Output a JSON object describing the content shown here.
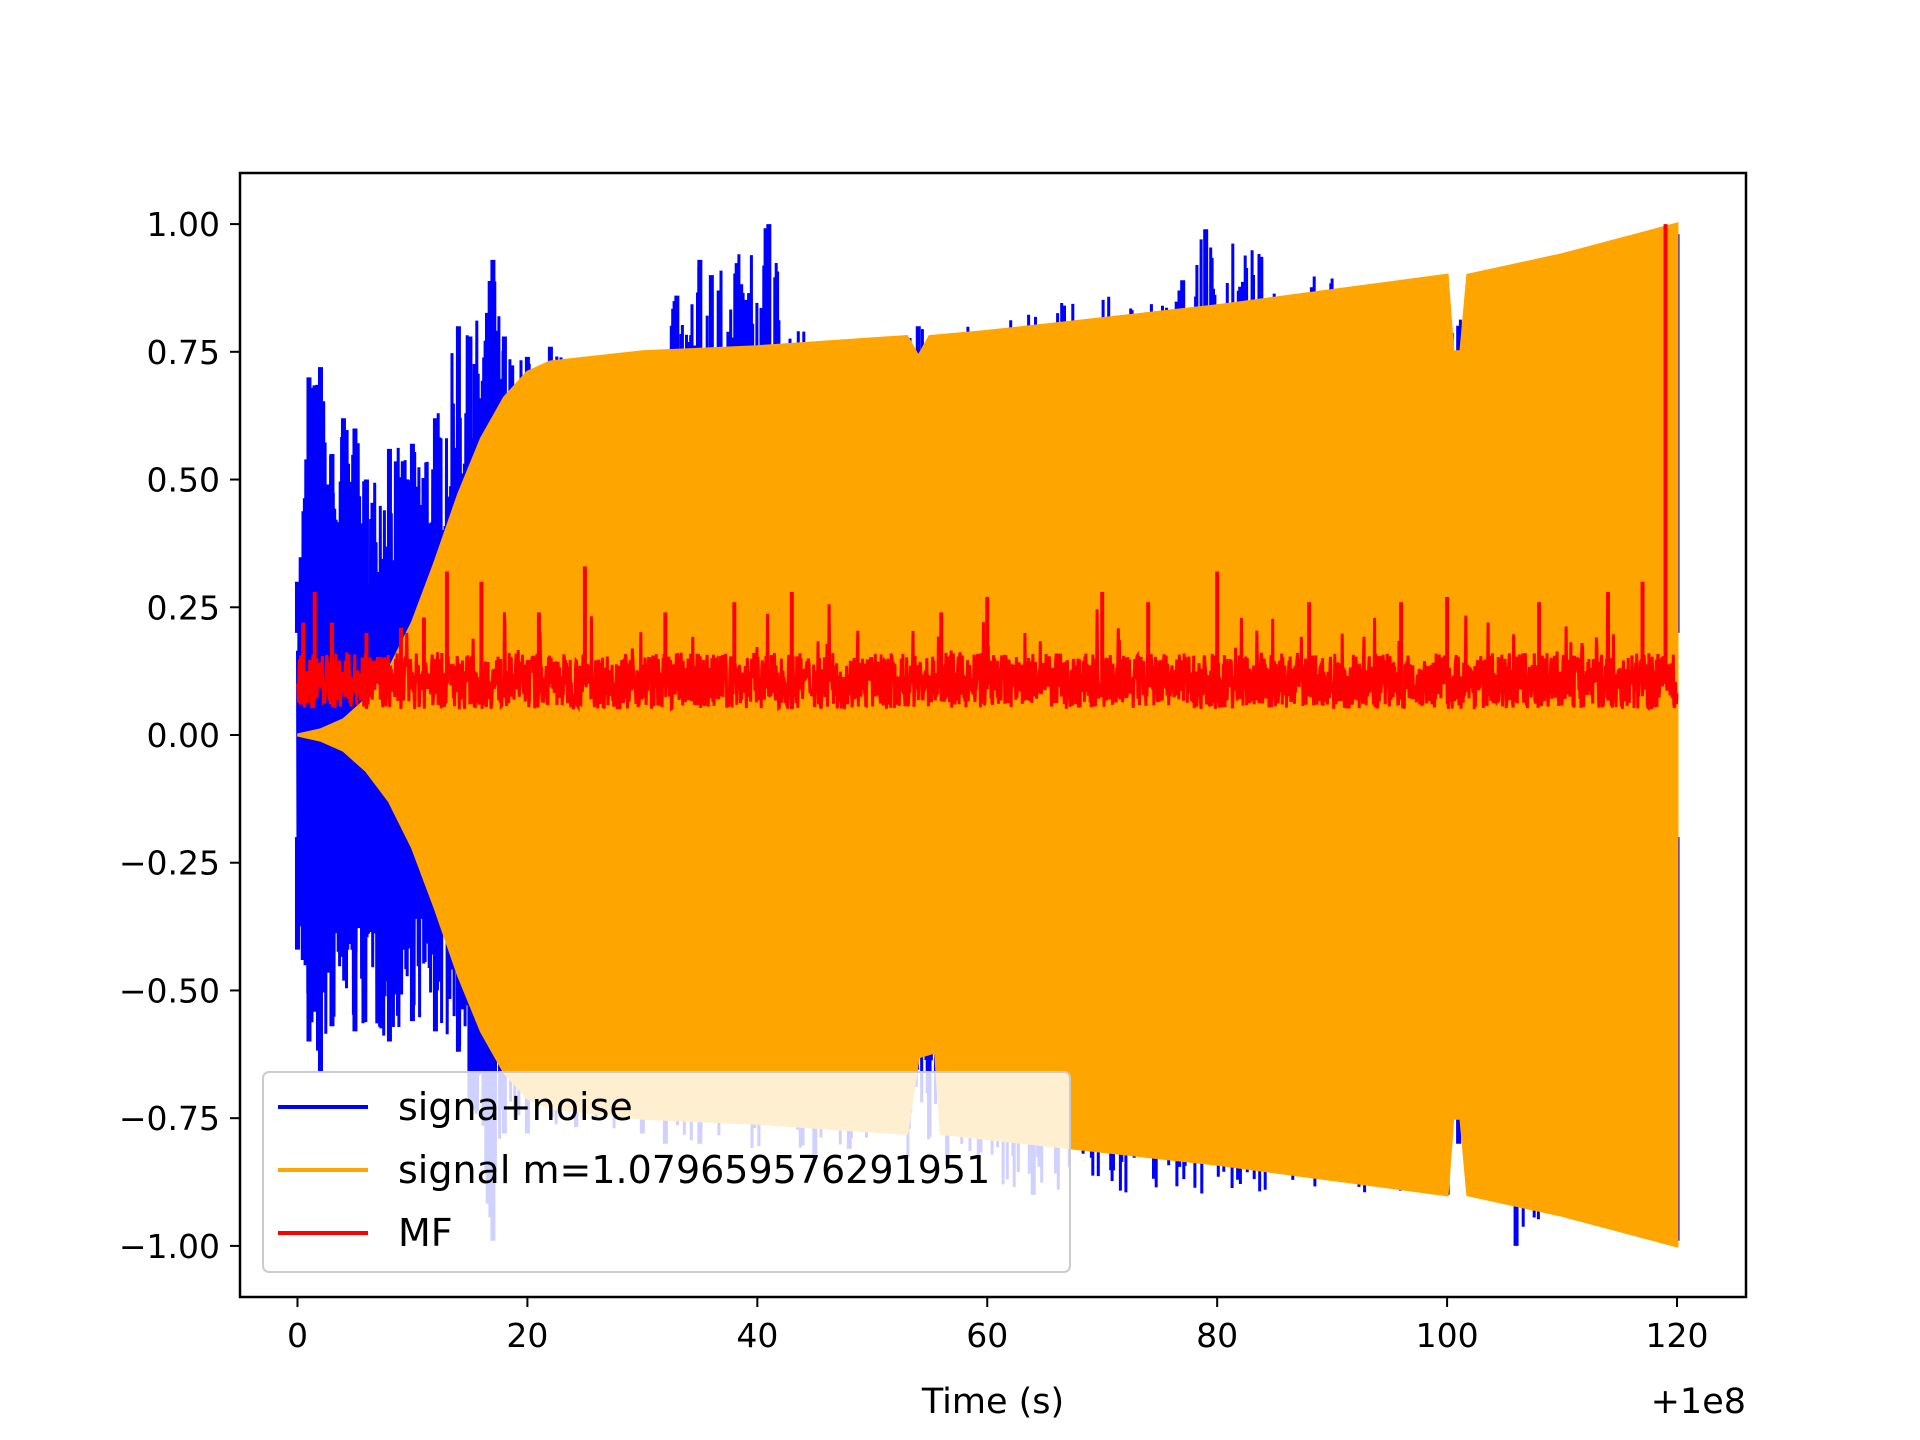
{
  "chart_data": {
    "type": "line",
    "xlabel": "Time (s)",
    "ylabel": "",
    "x_offset_label": "+1e8",
    "xlim": [
      -5,
      126
    ],
    "ylim": [
      -1.1,
      1.1
    ],
    "x_ticks": [
      0,
      20,
      40,
      60,
      80,
      100,
      120
    ],
    "x_tick_labels": [
      "0",
      "20",
      "40",
      "60",
      "80",
      "100",
      "120"
    ],
    "y_ticks": [
      1.0,
      0.75,
      0.5,
      0.25,
      0.0,
      -0.25,
      -0.5,
      -0.75,
      -1.0
    ],
    "y_tick_labels": [
      "1.00",
      "0.75",
      "0.50",
      "0.25",
      "0.00",
      "−0.25",
      "−0.50",
      "−0.75",
      "−1.00"
    ],
    "grid": false,
    "legend_position": "lower-left",
    "series": [
      {
        "name": "signa+noise",
        "color": "#0000ff",
        "x_range": [
          0,
          120
        ],
        "upper_envelope": [
          [
            0,
            0.3
          ],
          [
            1,
            0.7
          ],
          [
            2,
            0.72
          ],
          [
            3,
            0.55
          ],
          [
            4,
            0.62
          ],
          [
            5,
            0.6
          ],
          [
            6,
            0.5
          ],
          [
            8,
            0.56
          ],
          [
            10,
            0.57
          ],
          [
            12,
            0.62
          ],
          [
            14,
            0.8
          ],
          [
            15,
            0.78
          ],
          [
            17,
            0.93
          ],
          [
            18,
            0.78
          ],
          [
            20,
            0.74
          ],
          [
            22,
            0.76
          ],
          [
            25,
            0.74
          ],
          [
            30,
            0.75
          ],
          [
            33,
            0.86
          ],
          [
            35,
            0.93
          ],
          [
            36,
            0.9
          ],
          [
            41,
            1.0
          ],
          [
            45,
            0.76
          ],
          [
            54,
            0.8
          ],
          [
            77,
            0.89
          ],
          [
            79,
            0.99
          ],
          [
            100,
            0.82
          ],
          [
            105,
            0.86
          ],
          [
            120,
            0.98
          ]
        ],
        "lower_envelope": [
          [
            0,
            -0.42
          ],
          [
            1,
            -0.6
          ],
          [
            2,
            -0.66
          ],
          [
            3,
            -0.57
          ],
          [
            5,
            -0.58
          ],
          [
            8,
            -0.6
          ],
          [
            10,
            -0.56
          ],
          [
            12,
            -0.58
          ],
          [
            14,
            -0.62
          ],
          [
            15,
            -0.72
          ],
          [
            17,
            -0.99
          ],
          [
            18,
            -0.78
          ],
          [
            20,
            -0.78
          ],
          [
            30,
            -0.78
          ],
          [
            32,
            -0.8
          ],
          [
            35,
            -0.8
          ],
          [
            45,
            -0.82
          ],
          [
            48,
            -0.81
          ],
          [
            64,
            -0.9
          ],
          [
            100,
            -0.9
          ],
          [
            101,
            -0.8
          ],
          [
            106,
            -1.0
          ],
          [
            110,
            -0.93
          ],
          [
            120,
            -0.99
          ]
        ]
      },
      {
        "name": "signal m=1.079659576291951",
        "color": "#ffa500",
        "x_range": [
          0,
          120
        ],
        "upper_envelope": [
          [
            0,
            0.0
          ],
          [
            2,
            0.01
          ],
          [
            4,
            0.03
          ],
          [
            6,
            0.07
          ],
          [
            8,
            0.13
          ],
          [
            10,
            0.22
          ],
          [
            12,
            0.34
          ],
          [
            14,
            0.47
          ],
          [
            16,
            0.58
          ],
          [
            18,
            0.66
          ],
          [
            20,
            0.71
          ],
          [
            22,
            0.73
          ],
          [
            30,
            0.75
          ],
          [
            40,
            0.76
          ],
          [
            53,
            0.78
          ],
          [
            54,
            0.74
          ],
          [
            55,
            0.78
          ],
          [
            60,
            0.79
          ],
          [
            80,
            0.84
          ],
          [
            100,
            0.9
          ],
          [
            100.5,
            0.75
          ],
          [
            101.2,
            0.75
          ],
          [
            101.8,
            0.9
          ],
          [
            110,
            0.94
          ],
          [
            120,
            1.0
          ]
        ],
        "lower_envelope": [
          [
            0,
            0.0
          ],
          [
            2,
            -0.01
          ],
          [
            4,
            -0.03
          ],
          [
            6,
            -0.07
          ],
          [
            8,
            -0.13
          ],
          [
            10,
            -0.22
          ],
          [
            12,
            -0.34
          ],
          [
            14,
            -0.47
          ],
          [
            16,
            -0.58
          ],
          [
            18,
            -0.66
          ],
          [
            20,
            -0.71
          ],
          [
            22,
            -0.73
          ],
          [
            30,
            -0.75
          ],
          [
            40,
            -0.76
          ],
          [
            53,
            -0.78
          ],
          [
            54,
            -0.63
          ],
          [
            55.5,
            -0.62
          ],
          [
            56,
            -0.78
          ],
          [
            60,
            -0.79
          ],
          [
            80,
            -0.84
          ],
          [
            100,
            -0.9
          ],
          [
            100.5,
            -0.75
          ],
          [
            101.2,
            -0.75
          ],
          [
            101.8,
            -0.9
          ],
          [
            110,
            -0.94
          ],
          [
            120,
            -1.0
          ]
        ]
      },
      {
        "name": "MF",
        "color": "#ff0000",
        "x_range": [
          0,
          120
        ],
        "baseline": 0.1,
        "spread": 0.05,
        "peaks": [
          [
            0.5,
            0.22
          ],
          [
            1.5,
            0.28
          ],
          [
            3,
            0.22
          ],
          [
            6,
            0.2
          ],
          [
            9,
            0.21
          ],
          [
            11,
            0.23
          ],
          [
            13,
            0.32
          ],
          [
            16,
            0.3
          ],
          [
            21,
            0.24
          ],
          [
            25,
            0.33
          ],
          [
            32,
            0.24
          ],
          [
            38,
            0.26
          ],
          [
            43,
            0.28
          ],
          [
            56,
            0.24
          ],
          [
            60,
            0.27
          ],
          [
            70,
            0.28
          ],
          [
            74,
            0.26
          ],
          [
            80,
            0.32
          ],
          [
            88,
            0.26
          ],
          [
            96,
            0.26
          ],
          [
            100,
            0.27
          ],
          [
            108,
            0.26
          ],
          [
            114,
            0.28
          ],
          [
            117,
            0.3
          ],
          [
            119,
            1.0
          ]
        ]
      }
    ]
  }
}
